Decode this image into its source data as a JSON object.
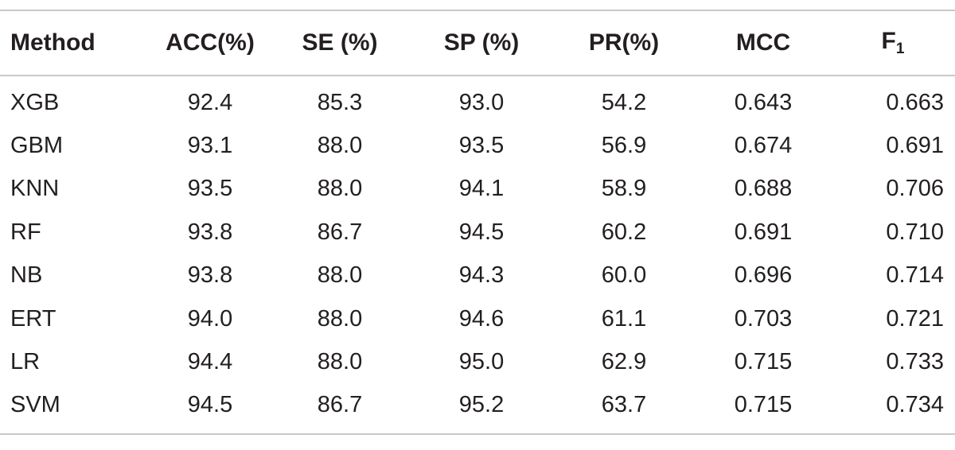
{
  "table": {
    "headers": {
      "method": "Method",
      "acc": "ACC(%)",
      "se": "SE (%)",
      "sp": "SP (%)",
      "pr": "PR(%)",
      "mcc": "MCC",
      "f1_base": "F",
      "f1_sub": "1"
    },
    "rows": [
      {
        "method": "XGB",
        "acc": "92.4",
        "se": "85.3",
        "sp": "93.0",
        "pr": "54.2",
        "mcc": "0.643",
        "f1": "0.663"
      },
      {
        "method": "GBM",
        "acc": "93.1",
        "se": "88.0",
        "sp": "93.5",
        "pr": "56.9",
        "mcc": "0.674",
        "f1": "0.691"
      },
      {
        "method": "KNN",
        "acc": "93.5",
        "se": "88.0",
        "sp": "94.1",
        "pr": "58.9",
        "mcc": "0.688",
        "f1": "0.706"
      },
      {
        "method": "RF",
        "acc": "93.8",
        "se": "86.7",
        "sp": "94.5",
        "pr": "60.2",
        "mcc": "0.691",
        "f1": "0.710"
      },
      {
        "method": "NB",
        "acc": "93.8",
        "se": "88.0",
        "sp": "94.3",
        "pr": "60.0",
        "mcc": "0.696",
        "f1": "0.714"
      },
      {
        "method": "ERT",
        "acc": "94.0",
        "se": "88.0",
        "sp": "94.6",
        "pr": "61.1",
        "mcc": "0.703",
        "f1": "0.721"
      },
      {
        "method": "LR",
        "acc": "94.4",
        "se": "88.0",
        "sp": "95.0",
        "pr": "62.9",
        "mcc": "0.715",
        "f1": "0.733"
      },
      {
        "method": "SVM",
        "acc": "94.5",
        "se": "86.7",
        "sp": "95.2",
        "pr": "63.7",
        "mcc": "0.715",
        "f1": "0.734"
      }
    ]
  }
}
